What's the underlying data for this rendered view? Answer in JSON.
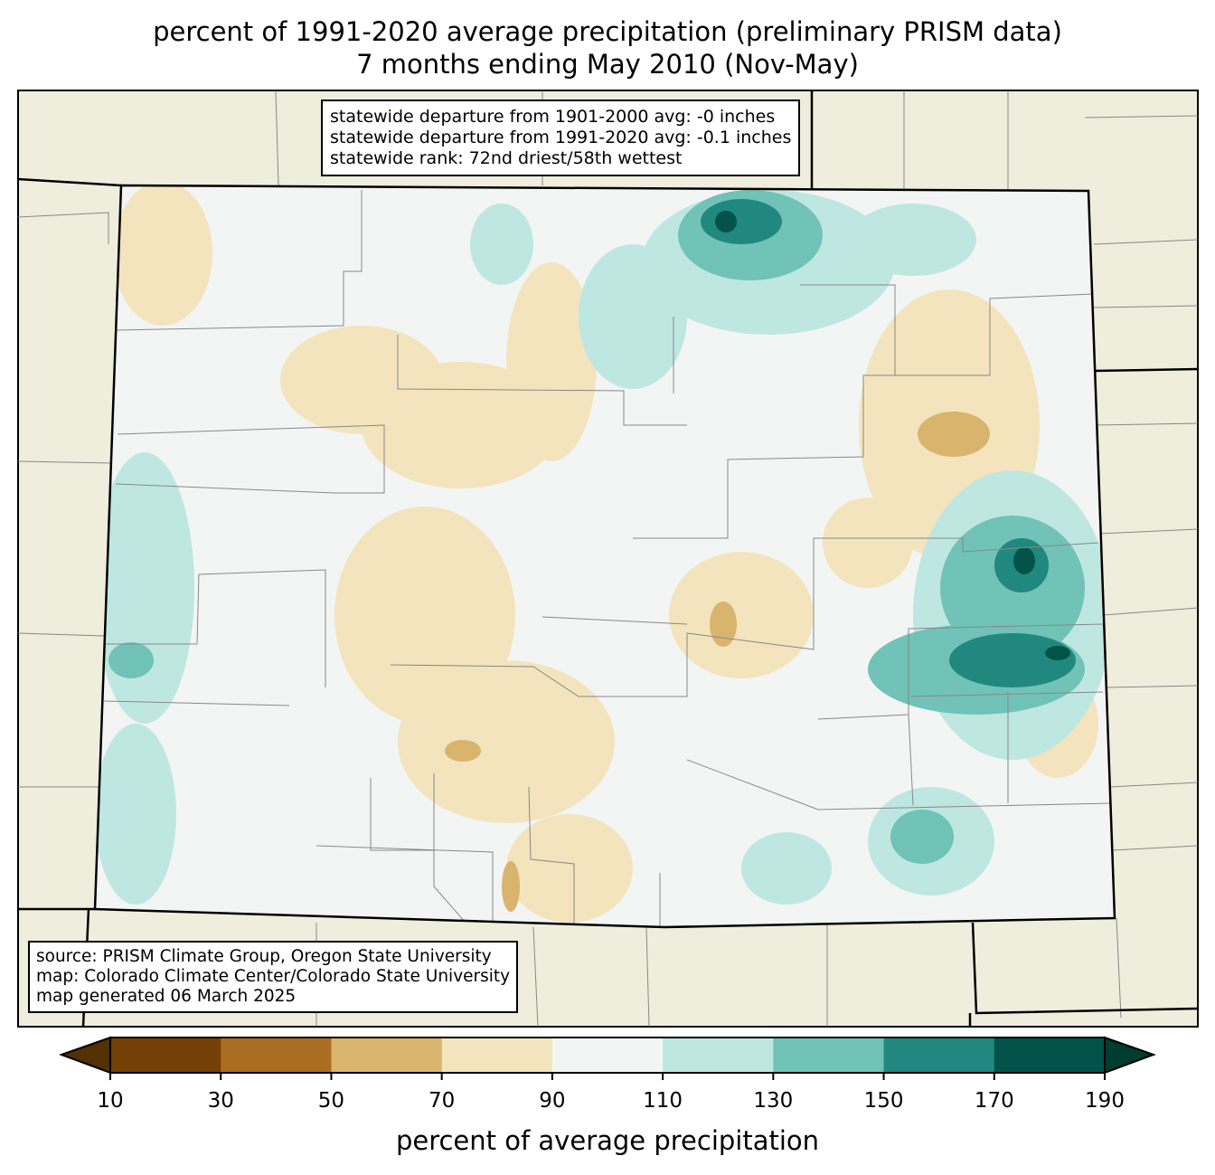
{
  "title": {
    "line1": "percent of 1991-2020 average precipitation (preliminary PRISM data)",
    "line2": "7 months ending May 2010 (Nov-May)"
  },
  "stats_box": {
    "line1": "statewide departure from 1901-2000 avg: -0 inches",
    "line2": "statewide departure from 1991-2020 avg: -0.1 inches",
    "line3": "statewide rank: 72nd driest/58th wettest"
  },
  "source_box": {
    "line1": "source: PRISM Climate Group, Oregon State University",
    "line2": "map: Colorado Climate Center/Colorado State University",
    "line3": "map generated 06 March 2025"
  },
  "colorbar": {
    "label": "percent of average precipitation",
    "ticks": [
      "10",
      "30",
      "50",
      "70",
      "90",
      "110",
      "130",
      "150",
      "170",
      "190"
    ],
    "colors": [
      "#744006",
      "#ab6d22",
      "#d9b46d",
      "#f3e4bd",
      "#f3f5f4",
      "#bfe7e2",
      "#71c2b7",
      "#218880",
      "#03534a"
    ],
    "under_color": "#543005",
    "over_color": "#003c30"
  },
  "map_colors": {
    "background": "#efeddc",
    "state_fill": "#f3f5f4"
  }
}
